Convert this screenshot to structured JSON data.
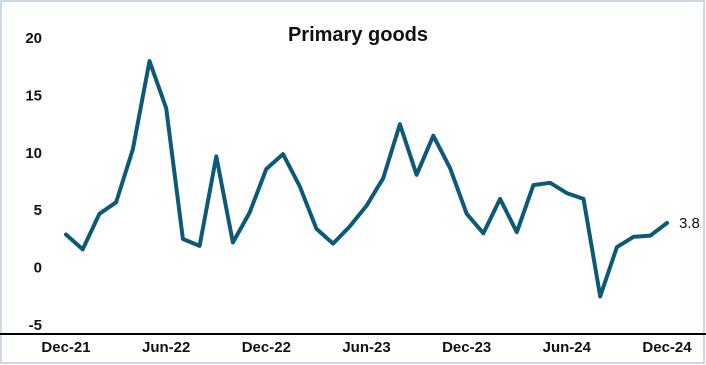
{
  "chart_data": {
    "type": "line",
    "title": "Primary goods",
    "xlabel": "",
    "ylabel": "",
    "ylim": [
      -5,
      20
    ],
    "yticks": [
      -5,
      0,
      5,
      10,
      15,
      20
    ],
    "grid": false,
    "legend": "none",
    "x_tick_labels": [
      "Dec-21",
      "Jun-22",
      "Dec-22",
      "Jun-23",
      "Dec-23",
      "Jun-24",
      "Dec-24"
    ],
    "x": [
      "Dec-21",
      "Jan-22",
      "Feb-22",
      "Mar-22",
      "Apr-22",
      "May-22",
      "Jun-22",
      "Jul-22",
      "Aug-22",
      "Sep-22",
      "Oct-22",
      "Nov-22",
      "Dec-22",
      "Jan-23",
      "Feb-23",
      "Mar-23",
      "Apr-23",
      "May-23",
      "Jun-23",
      "Jul-23",
      "Aug-23",
      "Sep-23",
      "Oct-23",
      "Nov-23",
      "Dec-23",
      "Jan-24",
      "Feb-24",
      "Mar-24",
      "Apr-24",
      "May-24",
      "Jun-24",
      "Jul-24",
      "Aug-24",
      "Sep-24",
      "Oct-24",
      "Nov-24",
      "Dec-24"
    ],
    "series": [
      {
        "color": "#0d5a78",
        "values": [
          2.8,
          1.5,
          4.6,
          5.6,
          10.2,
          17.9,
          13.8,
          2.4,
          1.8,
          9.6,
          2.1,
          4.7,
          8.5,
          9.8,
          7.0,
          3.3,
          2.0,
          3.5,
          5.3,
          7.7,
          12.4,
          8.0,
          11.4,
          8.6,
          4.6,
          2.9,
          5.9,
          3.0,
          7.1,
          7.3,
          6.4,
          5.9,
          -2.6,
          1.7,
          2.6,
          2.7,
          3.8
        ]
      }
    ],
    "annotations": [
      {
        "label": "3.8"
      }
    ],
    "axis_color": "#000000",
    "border_color": "#b9cbe0"
  }
}
